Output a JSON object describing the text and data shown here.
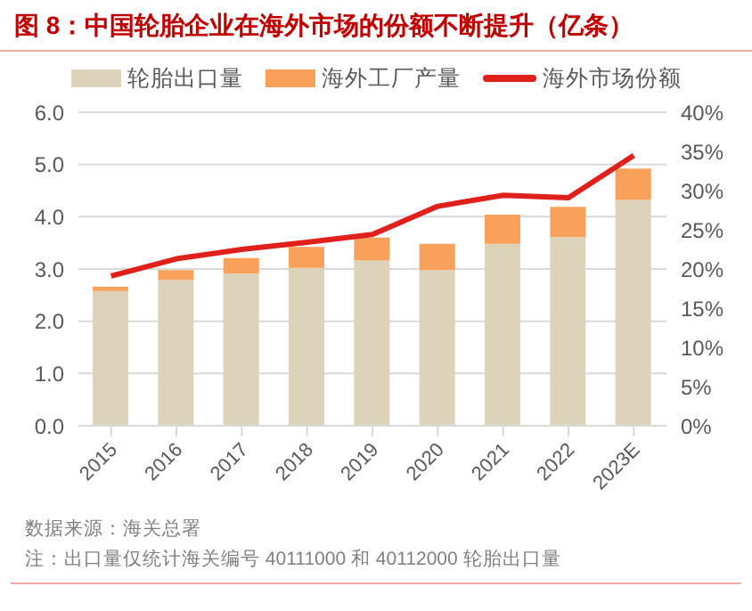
{
  "chart_data": {
    "type": "bar",
    "title": "图 8：中国轮胎企业在海外市场的份额不断提升（亿条）",
    "categories": [
      "2015",
      "2016",
      "2017",
      "2018",
      "2019",
      "2020",
      "2021",
      "2022",
      "2023E"
    ],
    "stacked": true,
    "series": [
      {
        "name": "轮胎出口量",
        "color": "#ddd3bb",
        "values": [
          2.58,
          2.79,
          2.91,
          3.02,
          3.16,
          2.98,
          3.48,
          3.61,
          4.32
        ]
      },
      {
        "name": "海外工厂产量",
        "color": "#f9a05a",
        "values": [
          0.08,
          0.19,
          0.3,
          0.4,
          0.44,
          0.5,
          0.56,
          0.58,
          0.6
        ]
      },
      {
        "name": "海外市场份额",
        "type": "line",
        "axis": "y2",
        "color": "#e0201b",
        "values": [
          19.1,
          21.3,
          22.5,
          23.4,
          24.4,
          28.0,
          29.4,
          29.1,
          34.5
        ]
      }
    ],
    "ylim": [
      0,
      6
    ],
    "yticks": [
      {
        "value": 0,
        "label": "0.0"
      },
      {
        "value": 1,
        "label": "1.0"
      },
      {
        "value": 2,
        "label": "2.0"
      },
      {
        "value": 3,
        "label": "3.0"
      },
      {
        "value": 4,
        "label": "4.0"
      },
      {
        "value": 5,
        "label": "5.0"
      },
      {
        "value": 6,
        "label": "6.0"
      }
    ],
    "y2lim": [
      0,
      40
    ],
    "y2ticks": [
      {
        "value": 0,
        "label": "0%"
      },
      {
        "value": 5,
        "label": "5%"
      },
      {
        "value": 10,
        "label": "10%"
      },
      {
        "value": 15,
        "label": "15%"
      },
      {
        "value": 20,
        "label": "20%"
      },
      {
        "value": 25,
        "label": "25%"
      },
      {
        "value": 30,
        "label": "30%"
      },
      {
        "value": 35,
        "label": "35%"
      },
      {
        "value": 40,
        "label": "40%"
      }
    ],
    "grid": "y",
    "legend": "top",
    "marker": "none",
    "annotations": [
      "数据来源：海关总署",
      "注：出口量仅统计海关编号 40111000 和 40112000 轮胎出口量"
    ]
  }
}
